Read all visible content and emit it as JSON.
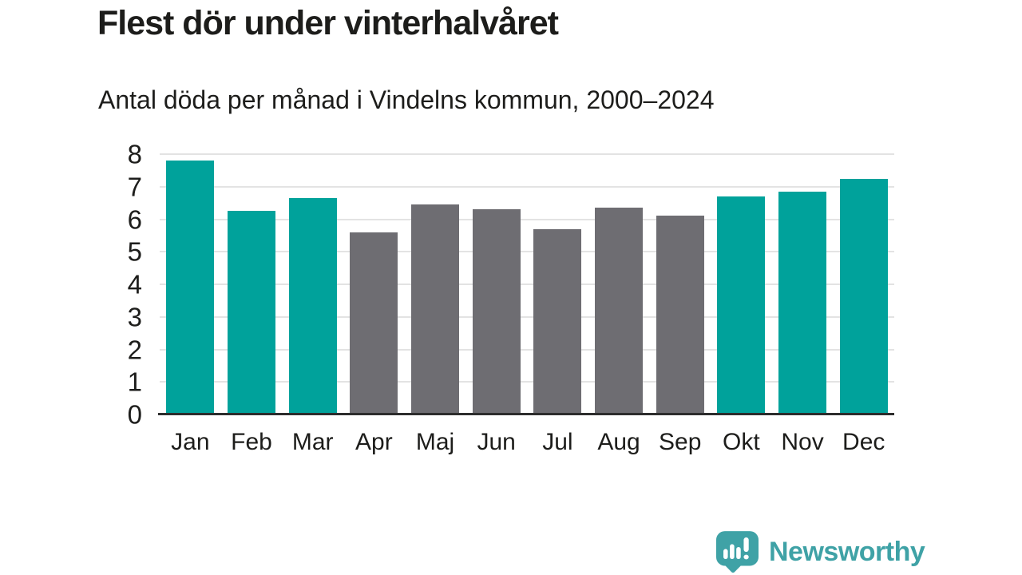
{
  "header": {
    "title": "Flest dör under vinterhalvåret",
    "subtitle": "Antal döda per månad i Vindelns kommun, 2000–2024"
  },
  "chart_data": {
    "type": "bar",
    "title": "Flest dör under vinterhalvåret",
    "subtitle": "Antal döda per månad i Vindelns kommun, 2000–2024",
    "categories": [
      "Jan",
      "Feb",
      "Mar",
      "Apr",
      "Maj",
      "Jun",
      "Jul",
      "Aug",
      "Sep",
      "Okt",
      "Nov",
      "Dec"
    ],
    "values": [
      7.8,
      6.25,
      6.65,
      5.6,
      6.45,
      6.3,
      5.7,
      6.35,
      6.1,
      6.7,
      6.85,
      7.25
    ],
    "bar_colors": [
      "#00a29b",
      "#00a29b",
      "#00a29b",
      "#6e6d72",
      "#6e6d72",
      "#6e6d72",
      "#6e6d72",
      "#6e6d72",
      "#6e6d72",
      "#00a29b",
      "#00a29b",
      "#00a29b"
    ],
    "highlight_color": "#00a29b",
    "muted_color": "#6e6d72",
    "xlabel": "",
    "ylabel": "",
    "ylim": [
      0,
      8
    ],
    "yticks": [
      0,
      1,
      2,
      3,
      4,
      5,
      6,
      7,
      8
    ],
    "grid": "horizontal",
    "grid_color": "#e3e3e3",
    "axis_color": "#2d2d2d",
    "legend": "none"
  },
  "branding": {
    "logo_text": "Newsworthy",
    "logo_icon": "newsworthy-chart-bubble-icon",
    "brand_color": "#3fa2a6"
  }
}
